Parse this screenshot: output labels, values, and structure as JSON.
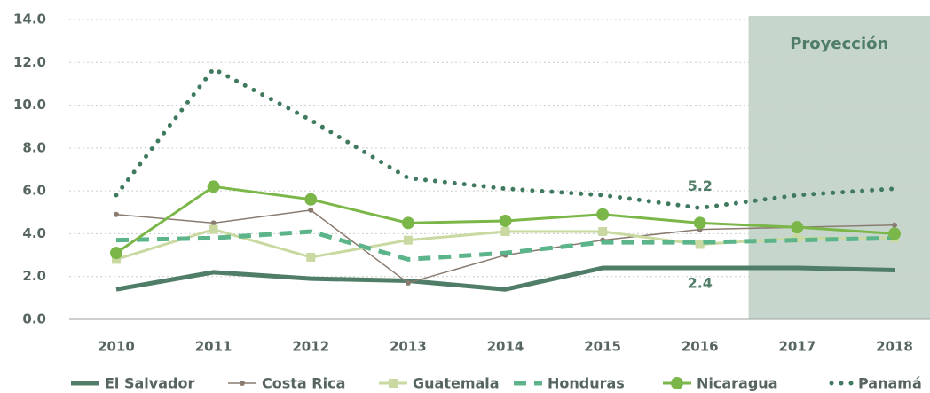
{
  "chart_data": {
    "type": "line",
    "categories": [
      "2010",
      "2011",
      "2012",
      "2013",
      "2014",
      "2015",
      "2016",
      "2017",
      "2018"
    ],
    "series": [
      {
        "name": "El Salvador",
        "color": "#4f7d67",
        "line_style": "solid",
        "weight": "heavy",
        "marker": null,
        "values": [
          1.4,
          2.2,
          1.9,
          1.8,
          1.4,
          2.4,
          2.4,
          2.4,
          2.3
        ],
        "value_labels": [
          null,
          null,
          null,
          null,
          null,
          null,
          "2.4",
          null,
          null
        ]
      },
      {
        "name": "Costa Rica",
        "color": "#8a7b70",
        "line_style": "solid",
        "weight": "light",
        "marker": "dot",
        "values": [
          4.9,
          4.5,
          5.1,
          1.7,
          3.0,
          3.7,
          4.2,
          4.3,
          4.4
        ]
      },
      {
        "name": "Guatemala",
        "color": "#c9d9a1",
        "line_style": "solid",
        "weight": "medium",
        "marker": "square",
        "values": [
          2.8,
          4.2,
          2.9,
          3.7,
          4.1,
          4.1,
          3.5,
          3.8,
          3.8
        ]
      },
      {
        "name": "Honduras",
        "color": "#5cb58a",
        "line_style": "dashed",
        "weight": "heavy",
        "marker": null,
        "values": [
          3.7,
          3.8,
          4.1,
          2.8,
          3.1,
          3.6,
          3.6,
          3.7,
          3.8
        ]
      },
      {
        "name": "Nicaragua",
        "color": "#7ab648",
        "line_style": "solid",
        "weight": "medium",
        "marker": "circle",
        "values": [
          3.1,
          6.2,
          5.6,
          4.5,
          4.6,
          4.9,
          4.5,
          4.3,
          4.0
        ]
      },
      {
        "name": "Panamá",
        "color": "#3f7a5e",
        "line_style": "dotted",
        "weight": "heavy",
        "marker": null,
        "values": [
          5.8,
          11.7,
          9.3,
          6.6,
          6.1,
          5.8,
          5.2,
          5.8,
          6.1
        ],
        "value_labels": [
          null,
          null,
          null,
          null,
          null,
          null,
          "5.2",
          null,
          null
        ]
      }
    ],
    "shaded_region": {
      "label": "Proyección",
      "from": "2017",
      "color": "#c6d6cd"
    },
    "ylim": [
      0,
      14
    ],
    "yticks": [
      {
        "value": 0,
        "label": "0.0"
      },
      {
        "value": 2,
        "label": "2.0"
      },
      {
        "value": 4,
        "label": "4.0"
      },
      {
        "value": 6,
        "label": "6.0"
      },
      {
        "value": 8,
        "label": "8.0"
      },
      {
        "value": 10,
        "label": "10.0"
      },
      {
        "value": 12,
        "label": "12.0"
      },
      {
        "value": 14,
        "label": "14.0"
      }
    ],
    "grid": true,
    "legend": "bottom"
  }
}
